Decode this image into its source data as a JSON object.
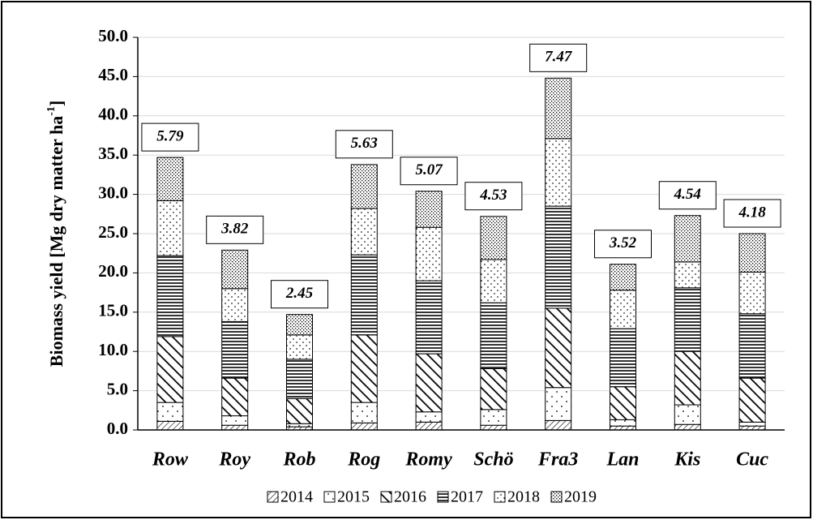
{
  "chart_data": {
    "type": "stacked-bar",
    "ylabel": "Biomass yield [Mg dry matter ha",
    "ylabel_sup": "-1",
    "ylabel_end": "]",
    "categories": [
      "Row",
      "Roy",
      "Rob",
      "Rog",
      "Romy",
      "Schö",
      "Fra3",
      "Lan",
      "Kis",
      "Cuc"
    ],
    "series": [
      {
        "name": "2014",
        "pattern": "p2014",
        "values": [
          1.1,
          0.6,
          0.4,
          0.9,
          1.0,
          0.6,
          1.2,
          0.5,
          0.7,
          0.5
        ]
      },
      {
        "name": "2015",
        "pattern": "p2015",
        "values": [
          2.4,
          1.2,
          0.4,
          2.6,
          1.3,
          2.0,
          4.2,
          0.8,
          2.5,
          0.5
        ]
      },
      {
        "name": "2016",
        "pattern": "p2016",
        "values": [
          8.4,
          4.8,
          3.2,
          8.6,
          7.4,
          5.2,
          10.1,
          4.2,
          6.8,
          5.6
        ]
      },
      {
        "name": "2017",
        "pattern": "p2017",
        "values": [
          10.3,
          7.2,
          5.0,
          10.2,
          9.3,
          8.4,
          13.0,
          7.4,
          8.1,
          8.2
        ]
      },
      {
        "name": "2018",
        "pattern": "p2018",
        "values": [
          7.0,
          4.2,
          3.1,
          5.9,
          6.8,
          5.5,
          8.6,
          4.9,
          3.3,
          5.3
        ]
      },
      {
        "name": "2019",
        "pattern": "p2019",
        "values": [
          5.5,
          4.9,
          2.6,
          5.6,
          4.6,
          5.5,
          7.7,
          3.3,
          5.9,
          4.9
        ]
      }
    ],
    "top_labels": [
      5.79,
      3.82,
      2.45,
      5.63,
      5.07,
      4.53,
      7.47,
      3.52,
      4.54,
      4.18
    ],
    "ylim": [
      0,
      50
    ],
    "yticks": [
      {
        "value": 0,
        "label": "0.0"
      },
      {
        "value": 5,
        "label": "5.0"
      },
      {
        "value": 10,
        "label": "10.0"
      },
      {
        "value": 15,
        "label": "15.0"
      },
      {
        "value": 20,
        "label": "20.0"
      },
      {
        "value": 25,
        "label": "25.0"
      },
      {
        "value": 30,
        "label": "30.0"
      },
      {
        "value": 35,
        "label": "35.0"
      },
      {
        "value": 40,
        "label": "40.0"
      },
      {
        "value": 45,
        "label": "45.0"
      },
      {
        "value": 50,
        "label": "50.0"
      }
    ],
    "grid": true
  }
}
